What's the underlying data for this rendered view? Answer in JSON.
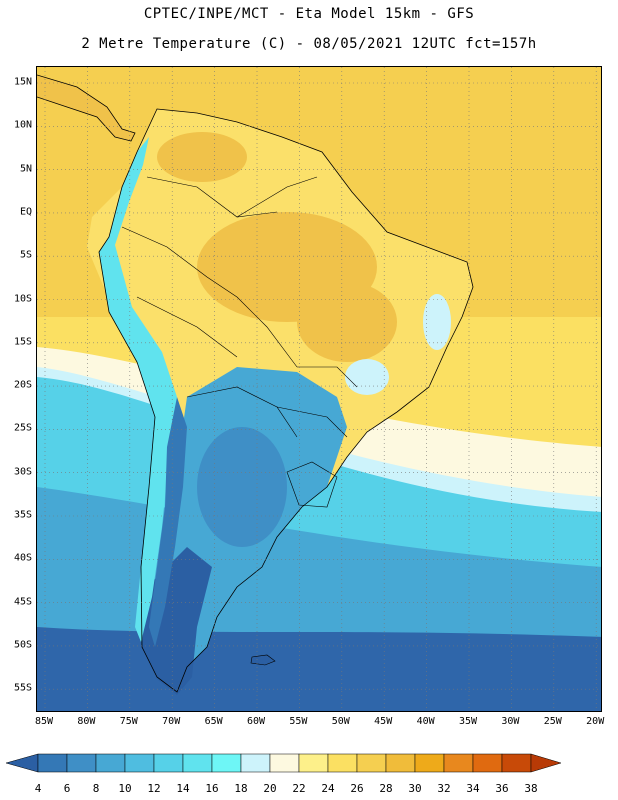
{
  "title": {
    "line1": "CPTEC/INPE/MCT -  Eta Model 15km - GFS",
    "line2": "2 Metre Temperature (C) - 08/05/2021 12UTC fct=157h"
  },
  "lat_labels": [
    "15N",
    "10N",
    "5N",
    "EQ",
    "5S",
    "10S",
    "15S",
    "20S",
    "25S",
    "30S",
    "35S",
    "40S",
    "45S",
    "50S",
    "55S"
  ],
  "lon_labels": [
    "85W",
    "80W",
    "75W",
    "70W",
    "65W",
    "60W",
    "55W",
    "50W",
    "45W",
    "40W",
    "35W",
    "30W",
    "25W",
    "20W"
  ],
  "colorbar": {
    "labels": [
      "4",
      "6",
      "8",
      "10",
      "12",
      "14",
      "16",
      "18",
      "20",
      "22",
      "24",
      "26",
      "28",
      "30",
      "32",
      "34",
      "36",
      "38"
    ],
    "colors": [
      "#2b5fa3",
      "#3478b6",
      "#3f8fc6",
      "#47a8d4",
      "#4fbde0",
      "#56d1e8",
      "#60e3ee",
      "#6ef6f6",
      "#cdf3fb",
      "#fdf9e0",
      "#fdf08a",
      "#fbe062",
      "#f5cf50",
      "#f0bc3a",
      "#eeaa1a",
      "#e8881e",
      "#e06a10",
      "#c84a08",
      "#b83a06"
    ]
  },
  "map_colors": {
    "ocean_cold": "#2f66aa",
    "ocean_mid": "#47a8d4",
    "ocean_cool": "#56d1e8",
    "ocean_light": "#cdf3fb",
    "ocean_warm": "#fbe062",
    "ocean_tropical": "#f5cf50",
    "land_hot": "#f0c24a",
    "land_warm": "#fbe06a",
    "andes": "#60e3ee",
    "patagonia": "#2b5fa3"
  }
}
